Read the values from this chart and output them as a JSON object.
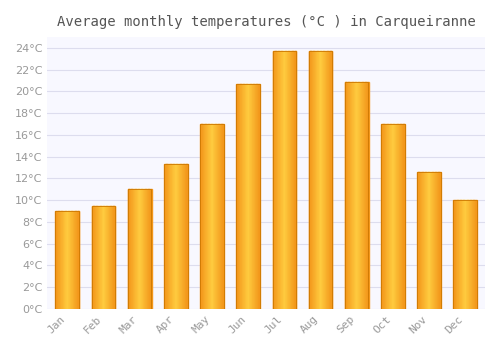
{
  "title": "Average monthly temperatures (°C ) in Carqueiranne",
  "months": [
    "Jan",
    "Feb",
    "Mar",
    "Apr",
    "May",
    "Jun",
    "Jul",
    "Aug",
    "Sep",
    "Oct",
    "Nov",
    "Dec"
  ],
  "temperatures": [
    9.0,
    9.5,
    11.0,
    13.3,
    17.0,
    20.7,
    23.7,
    23.7,
    20.9,
    17.0,
    12.6,
    10.0
  ],
  "bar_color_main": "#FFA820",
  "bar_color_light": "#FFD060",
  "bar_color_dark": "#E08000",
  "background_color": "#FFFFFF",
  "plot_bg_color": "#F8F8FF",
  "grid_color": "#DDDDEE",
  "ylim": [
    0,
    25
  ],
  "yticks": [
    0,
    2,
    4,
    6,
    8,
    10,
    12,
    14,
    16,
    18,
    20,
    22,
    24
  ],
  "title_fontsize": 10,
  "tick_fontsize": 8,
  "title_color": "#555555",
  "tick_color": "#999999",
  "bar_width": 0.65
}
